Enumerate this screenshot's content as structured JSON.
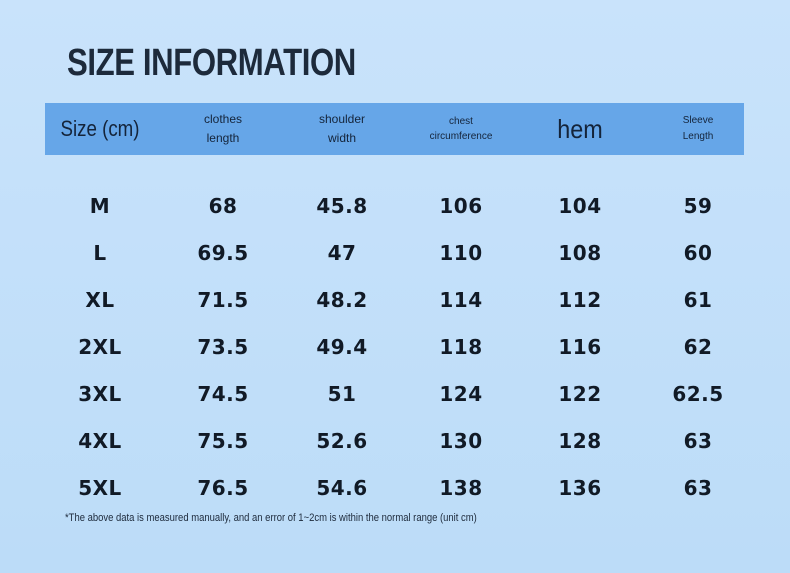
{
  "title": "SIZE INFORMATION",
  "table": {
    "header": [
      "Size (cm)",
      "clothes length",
      "shoulder width",
      "chest circumference",
      "hem",
      "Sleeve Length"
    ],
    "rows": [
      [
        "M",
        "68",
        "45.8",
        "106",
        "104",
        "59"
      ],
      [
        "L",
        "69.5",
        "47",
        "110",
        "108",
        "60"
      ],
      [
        "XL",
        "71.5",
        "48.2",
        "114",
        "112",
        "61"
      ],
      [
        "2XL",
        "73.5",
        "49.4",
        "118",
        "116",
        "62"
      ],
      [
        "3XL",
        "74.5",
        "51",
        "124",
        "122",
        "62.5"
      ],
      [
        "4XL",
        "75.5",
        "52.6",
        "130",
        "128",
        "63"
      ],
      [
        "5XL",
        "76.5",
        "54.6",
        "138",
        "136",
        "63"
      ]
    ]
  },
  "footnote": "*The above data is measured manually, and an error of 1~2cm is within the normal range (unit cm)"
}
